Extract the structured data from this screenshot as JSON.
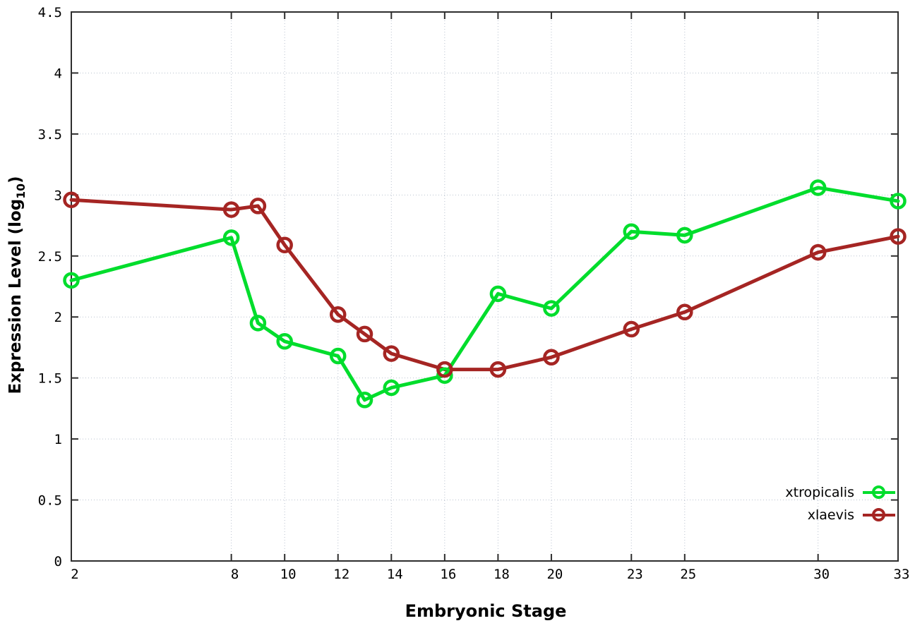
{
  "chart_data": {
    "type": "line",
    "title": "",
    "xlabel": "Embryonic Stage",
    "ylabel": "Expression Level (log10)",
    "ylabel_parts": {
      "main": "Expression Level (log",
      "sub": "10",
      "end": ")"
    },
    "x": [
      2,
      8,
      9,
      10,
      12,
      13,
      14,
      16,
      18,
      20,
      23,
      25,
      30,
      33
    ],
    "x_ticks": [
      2,
      8,
      10,
      12,
      14,
      16,
      18,
      20,
      23,
      25,
      30,
      33
    ],
    "y_ticks": [
      0,
      0.5,
      1,
      1.5,
      2,
      2.5,
      3,
      3.5,
      4,
      4.5
    ],
    "xlim": [
      2,
      33
    ],
    "ylim": [
      0,
      4.5
    ],
    "grid": true,
    "legend_position": "bottom-right-inside",
    "series": [
      {
        "name": "xtropicalis",
        "color": "#00dd2c",
        "marker": "open-circle",
        "values": [
          2.3,
          2.65,
          1.95,
          1.8,
          1.68,
          1.32,
          1.42,
          1.52,
          2.19,
          2.07,
          2.7,
          2.67,
          3.06,
          2.95
        ]
      },
      {
        "name": "xlaevis",
        "color": "#a52523",
        "marker": "open-circle",
        "values": [
          2.96,
          2.88,
          2.91,
          2.59,
          2.02,
          1.86,
          1.7,
          1.57,
          1.57,
          1.67,
          1.9,
          2.04,
          2.53,
          2.66
        ]
      }
    ]
  },
  "colors": {
    "background": "#ffffff",
    "grid": "#b9c2cf",
    "axis": "#2e2e2e",
    "tick_text": "#000000"
  }
}
